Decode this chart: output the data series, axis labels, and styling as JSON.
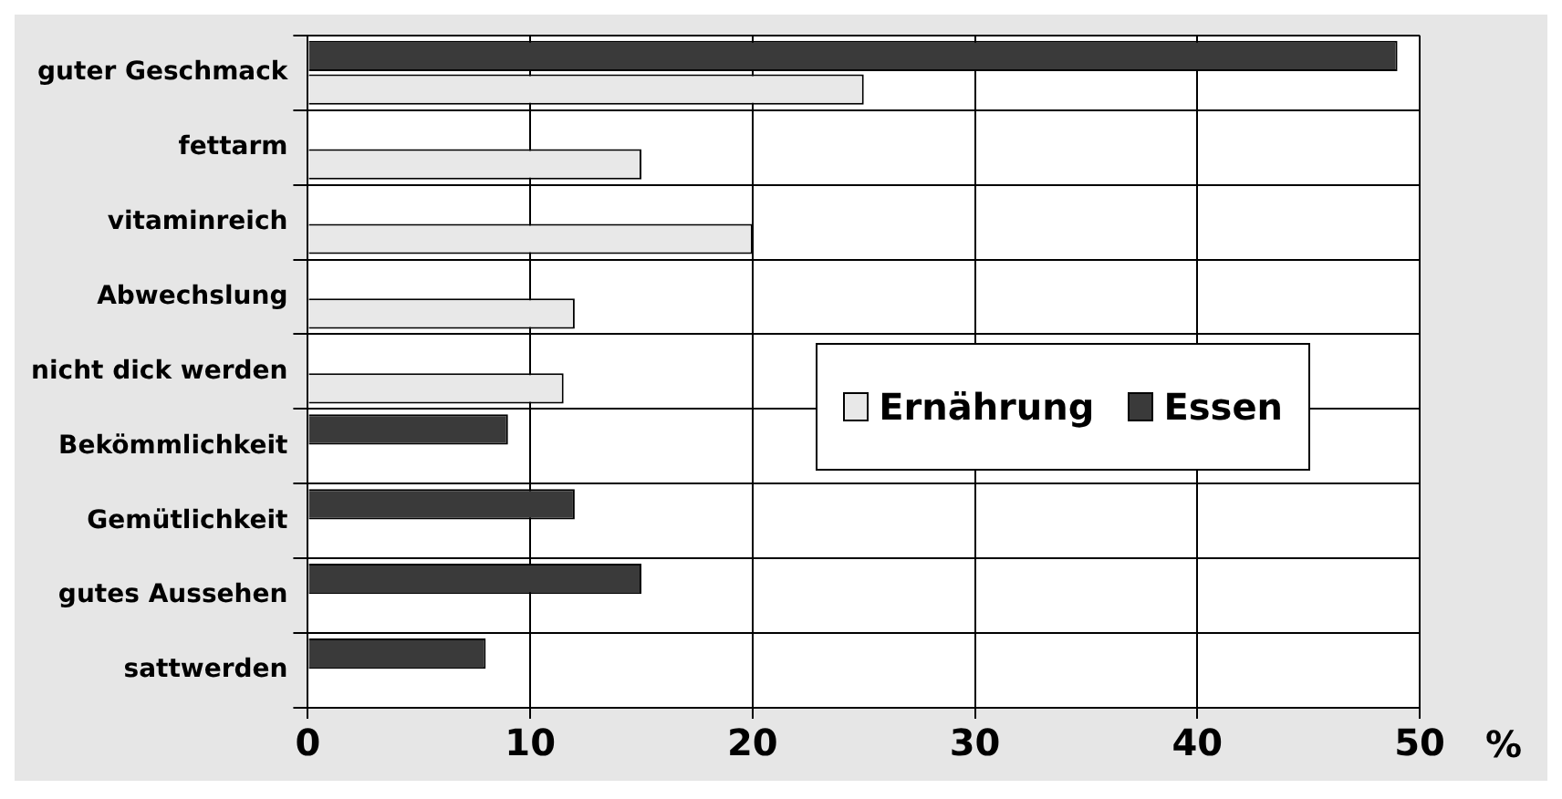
{
  "chart_data": {
    "type": "bar",
    "orientation": "horizontal",
    "xlabel": "%",
    "categories": [
      "guter Geschmack",
      "fettarm",
      "vitaminreich",
      "Abwechslung",
      "nicht dick werden",
      "Bekömmlichkeit",
      "Gemütlichkeit",
      "gutes Aussehen",
      "sattwerden"
    ],
    "series": [
      {
        "name": "Ernährung",
        "color": "#e8e8e8",
        "values": [
          25,
          15,
          20,
          12,
          11.5,
          0,
          0,
          0,
          0
        ]
      },
      {
        "name": "Essen",
        "color": "#3a3a3a",
        "values": [
          49,
          0,
          0,
          0,
          0,
          9,
          12,
          15,
          8
        ]
      }
    ],
    "xlim": [
      0,
      50
    ],
    "xticks": [
      0,
      10,
      20,
      30,
      40,
      50
    ],
    "grid": true,
    "legend": "right"
  }
}
